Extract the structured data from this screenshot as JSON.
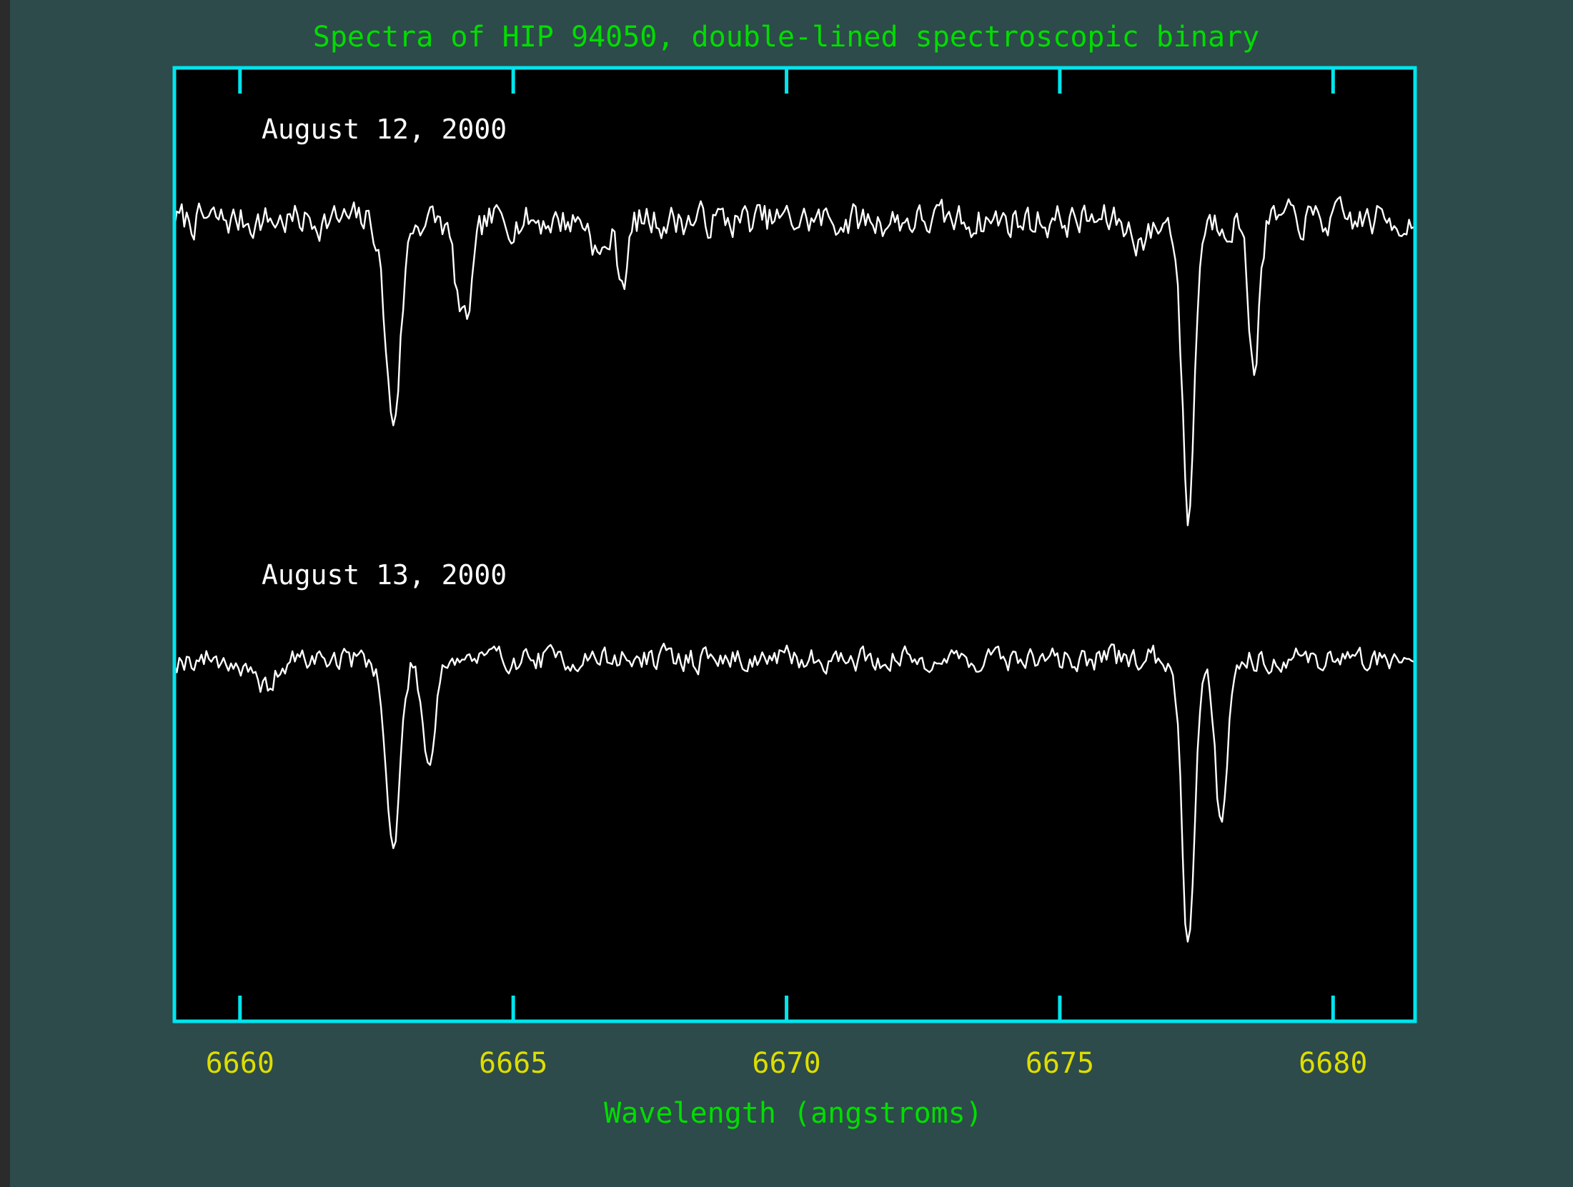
{
  "colors": {
    "background": "#2d4b4a",
    "plot_background": "#000000",
    "frame": "#00e5ee",
    "title": "#00dd00",
    "tick_labels": "#dddd00",
    "xlabel": "#00dd00",
    "spectrum": "#ffffff",
    "annotation": "#ffffff"
  },
  "chart_data": {
    "type": "line",
    "title": "Spectra of HIP 94050, double-lined spectroscopic binary",
    "xlabel": "Wavelength (angstroms)",
    "ylabel": "",
    "xlim": [
      6658.8,
      6681.5
    ],
    "ylim": [
      0,
      1
    ],
    "grid": false,
    "y_axis_labels": false,
    "x_ticks": [
      6660,
      6665,
      6670,
      6675,
      6680
    ],
    "x_tick_labels": [
      "6660",
      "6665",
      "6670",
      "6675",
      "6680"
    ],
    "annotations": [
      "August 12, 2000",
      "August 13, 2000"
    ],
    "series": [
      {
        "continuum": 0.84,
        "noise": 0.018,
        "seed": 7,
        "x_step": 0.045,
        "lines": [
          {
            "center": 6662.8,
            "depth": 0.21,
            "width": 0.14
          },
          {
            "center": 6664.1,
            "depth": 0.11,
            "width": 0.15
          },
          {
            "center": 6666.6,
            "depth": 0.04,
            "width": 0.12
          },
          {
            "center": 6667.0,
            "depth": 0.06,
            "width": 0.1
          },
          {
            "center": 6677.35,
            "depth": 0.31,
            "width": 0.11
          },
          {
            "center": 6678.55,
            "depth": 0.15,
            "width": 0.1
          },
          {
            "center": 6676.5,
            "depth": 0.02,
            "width": 0.2
          }
        ]
      },
      {
        "continuum": 0.38,
        "noise": 0.013,
        "seed": 19,
        "x_step": 0.045,
        "lines": [
          {
            "center": 6662.8,
            "depth": 0.2,
            "width": 0.13
          },
          {
            "center": 6663.45,
            "depth": 0.11,
            "width": 0.11
          },
          {
            "center": 6677.35,
            "depth": 0.3,
            "width": 0.11
          },
          {
            "center": 6677.95,
            "depth": 0.17,
            "width": 0.11
          },
          {
            "center": 6660.4,
            "depth": 0.03,
            "width": 0.25
          }
        ]
      }
    ]
  }
}
